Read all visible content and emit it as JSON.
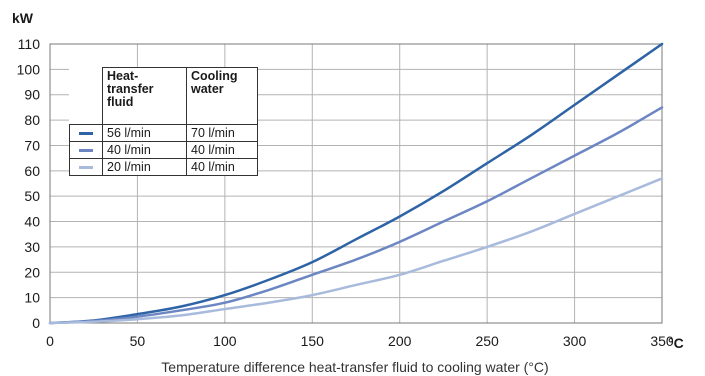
{
  "chart_data": {
    "type": "line",
    "title": "",
    "xlabel": "Temperature difference heat-transfer fluid to cooling water (°C)",
    "ylabel": "kW",
    "x_unit": "°C",
    "xlim": [
      0,
      350
    ],
    "ylim": [
      0,
      110
    ],
    "x_ticks": [
      "0",
      "50",
      "100",
      "150",
      "200",
      "250",
      "300",
      "350"
    ],
    "y_ticks": [
      "0",
      "10",
      "20",
      "30",
      "40",
      "50",
      "60",
      "70",
      "80",
      "90",
      "100",
      "110"
    ],
    "grid": true,
    "x": [
      0,
      25,
      50,
      75,
      100,
      125,
      150,
      175,
      200,
      225,
      250,
      275,
      300,
      325,
      350
    ],
    "series": [
      {
        "heat_transfer_fluid": "56 l/min",
        "cooling_water": "70 l/min",
        "color": "#2e63a6",
        "values": [
          0,
          1,
          3.5,
          6.5,
          11,
          17,
          24,
          33,
          42,
          52,
          63,
          74,
          86,
          98,
          110
        ]
      },
      {
        "heat_transfer_fluid": "40 l/min",
        "cooling_water": "40 l/min",
        "color": "#6b86c2",
        "values": [
          0,
          0.8,
          2.5,
          5,
          8,
          13,
          19,
          25,
          32,
          40,
          48,
          57,
          66,
          75,
          85
        ]
      },
      {
        "heat_transfer_fluid": "20 l/min",
        "cooling_water": "40 l/min",
        "color": "#a9bbdc",
        "values": [
          0,
          0.5,
          1.5,
          3,
          5.5,
          8,
          11,
          15,
          19,
          24.5,
          30,
          36,
          43,
          50,
          57
        ]
      }
    ],
    "legend": {
      "placement": "top-left",
      "header_fluid": "Heat-transfer fluid",
      "header_fluid_lines": [
        "Heat-",
        "transfer",
        "fluid"
      ],
      "header_water_lines": [
        "Cooling",
        "water"
      ]
    }
  }
}
